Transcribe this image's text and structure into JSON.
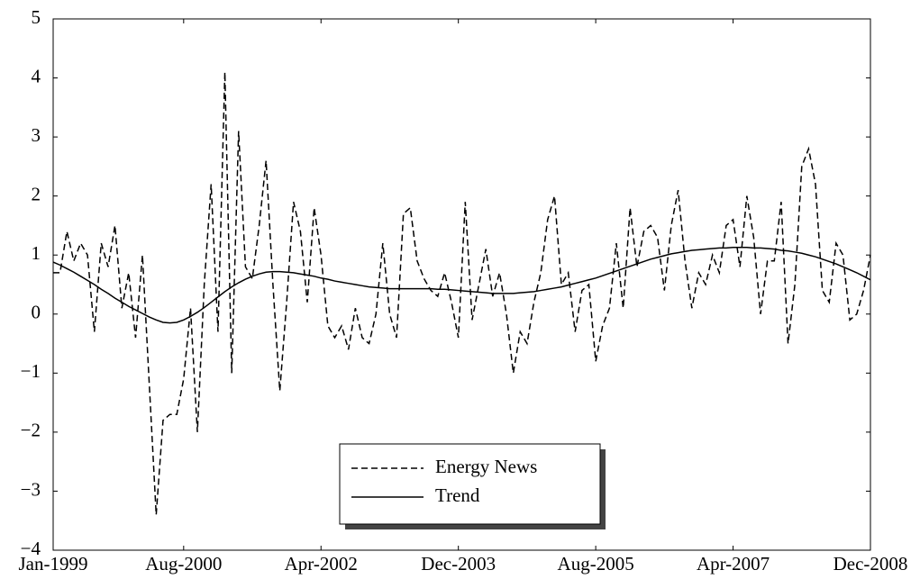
{
  "chart_data": {
    "type": "line",
    "x": [
      "Jan-1999",
      "Feb-1999",
      "Mar-1999",
      "Apr-1999",
      "May-1999",
      "Jun-1999",
      "Jul-1999",
      "Aug-1999",
      "Sep-1999",
      "Oct-1999",
      "Nov-1999",
      "Dec-1999",
      "Jan-2000",
      "Feb-2000",
      "Mar-2000",
      "Apr-2000",
      "May-2000",
      "Jun-2000",
      "Jul-2000",
      "Aug-2000",
      "Sep-2000",
      "Oct-2000",
      "Nov-2000",
      "Dec-2000",
      "Jan-2001",
      "Feb-2001",
      "Mar-2001",
      "Apr-2001",
      "May-2001",
      "Jun-2001",
      "Jul-2001",
      "Aug-2001",
      "Sep-2001",
      "Oct-2001",
      "Nov-2001",
      "Dec-2001",
      "Jan-2002",
      "Feb-2002",
      "Mar-2002",
      "Apr-2002",
      "May-2002",
      "Jun-2002",
      "Jul-2002",
      "Aug-2002",
      "Sep-2002",
      "Oct-2002",
      "Nov-2002",
      "Dec-2002",
      "Jan-2003",
      "Feb-2003",
      "Mar-2003",
      "Apr-2003",
      "May-2003",
      "Jun-2003",
      "Jul-2003",
      "Aug-2003",
      "Sep-2003",
      "Oct-2003",
      "Nov-2003",
      "Dec-2003",
      "Jan-2004",
      "Feb-2004",
      "Mar-2004",
      "Apr-2004",
      "May-2004",
      "Jun-2004",
      "Jul-2004",
      "Aug-2004",
      "Sep-2004",
      "Oct-2004",
      "Nov-2004",
      "Dec-2004",
      "Jan-2005",
      "Feb-2005",
      "Mar-2005",
      "Apr-2005",
      "May-2005",
      "Jun-2005",
      "Jul-2005",
      "Aug-2005",
      "Sep-2005",
      "Oct-2005",
      "Nov-2005",
      "Dec-2005",
      "Jan-2006",
      "Feb-2006",
      "Mar-2006",
      "Apr-2006",
      "May-2006",
      "Jun-2006",
      "Jul-2006",
      "Aug-2006",
      "Sep-2006",
      "Oct-2006",
      "Nov-2006",
      "Dec-2006",
      "Jan-2007",
      "Feb-2007",
      "Mar-2007",
      "Apr-2007",
      "May-2007",
      "Jun-2007",
      "Jul-2007",
      "Aug-2007",
      "Sep-2007",
      "Oct-2007",
      "Nov-2007",
      "Dec-2007",
      "Jan-2008",
      "Feb-2008",
      "Mar-2008",
      "Apr-2008",
      "May-2008",
      "Jun-2008",
      "Jul-2008",
      "Aug-2008",
      "Sep-2008",
      "Oct-2008",
      "Nov-2008",
      "Dec-2008"
    ],
    "xticks": [
      "Jan-1999",
      "Aug-2000",
      "Apr-2002",
      "Dec-2003",
      "Aug-2005",
      "Apr-2007",
      "Dec-2008"
    ],
    "ylim": [
      -4,
      5
    ],
    "yticks": [
      {
        "value": -4,
        "label": "−4"
      },
      {
        "value": -3,
        "label": "−3"
      },
      {
        "value": -2,
        "label": "−2"
      },
      {
        "value": -1,
        "label": "−1"
      },
      0,
      1,
      2,
      3,
      4,
      5
    ],
    "legend": "lower center",
    "series": [
      {
        "name": "Energy News",
        "color": "#000000",
        "dash": true,
        "values": [
          0.7,
          0.7,
          1.4,
          0.9,
          1.2,
          1.0,
          -0.3,
          1.2,
          0.8,
          1.5,
          0.1,
          0.7,
          -0.4,
          1.0,
          -1.2,
          -3.4,
          -1.8,
          -1.7,
          -1.7,
          -1.1,
          0.1,
          -2.0,
          0.5,
          2.2,
          -0.3,
          4.1,
          -1.0,
          3.1,
          0.8,
          0.6,
          1.5,
          2.6,
          0.5,
          -1.3,
          0.2,
          1.9,
          1.4,
          0.2,
          1.8,
          1.0,
          -0.2,
          -0.4,
          -0.2,
          -0.6,
          0.1,
          -0.4,
          -0.5,
          0.0,
          1.2,
          0.0,
          -0.4,
          1.7,
          1.8,
          0.9,
          0.6,
          0.4,
          0.3,
          0.7,
          0.2,
          -0.4,
          1.9,
          -0.1,
          0.5,
          1.1,
          0.3,
          0.7,
          0.0,
          -1.0,
          -0.3,
          -0.5,
          0.2,
          0.7,
          1.6,
          2.0,
          0.5,
          0.7,
          -0.3,
          0.4,
          0.5,
          -0.8,
          -0.2,
          0.1,
          1.2,
          0.1,
          1.8,
          0.8,
          1.4,
          1.5,
          1.3,
          0.4,
          1.5,
          2.1,
          0.9,
          0.1,
          0.7,
          0.5,
          1.0,
          0.7,
          1.5,
          1.6,
          0.8,
          2.0,
          1.3,
          0.0,
          0.9,
          0.9,
          1.9,
          -0.5,
          0.5,
          2.5,
          2.8,
          2.2,
          0.4,
          0.2,
          1.2,
          1.0,
          -0.1,
          0.0,
          0.4,
          1.0
        ]
      },
      {
        "name": "Trend",
        "color": "#000000",
        "dash": false,
        "values": [
          0.88,
          0.83,
          0.77,
          0.71,
          0.64,
          0.57,
          0.5,
          0.42,
          0.35,
          0.27,
          0.2,
          0.13,
          0.07,
          0.01,
          -0.05,
          -0.1,
          -0.14,
          -0.15,
          -0.14,
          -0.1,
          -0.04,
          0.03,
          0.11,
          0.2,
          0.29,
          0.38,
          0.46,
          0.53,
          0.59,
          0.64,
          0.68,
          0.71,
          0.72,
          0.72,
          0.71,
          0.7,
          0.68,
          0.66,
          0.64,
          0.61,
          0.59,
          0.56,
          0.54,
          0.52,
          0.5,
          0.48,
          0.46,
          0.45,
          0.44,
          0.43,
          0.43,
          0.43,
          0.43,
          0.43,
          0.43,
          0.43,
          0.42,
          0.42,
          0.41,
          0.4,
          0.39,
          0.38,
          0.37,
          0.36,
          0.35,
          0.35,
          0.35,
          0.35,
          0.36,
          0.37,
          0.38,
          0.4,
          0.42,
          0.44,
          0.46,
          0.49,
          0.52,
          0.55,
          0.58,
          0.61,
          0.65,
          0.69,
          0.73,
          0.77,
          0.81,
          0.85,
          0.89,
          0.93,
          0.96,
          0.99,
          1.02,
          1.04,
          1.06,
          1.08,
          1.09,
          1.1,
          1.11,
          1.12,
          1.12,
          1.13,
          1.13,
          1.13,
          1.12,
          1.12,
          1.11,
          1.1,
          1.08,
          1.07,
          1.05,
          1.03,
          1.0,
          0.97,
          0.93,
          0.89,
          0.85,
          0.8,
          0.75,
          0.7,
          0.64,
          0.58
        ]
      }
    ]
  }
}
